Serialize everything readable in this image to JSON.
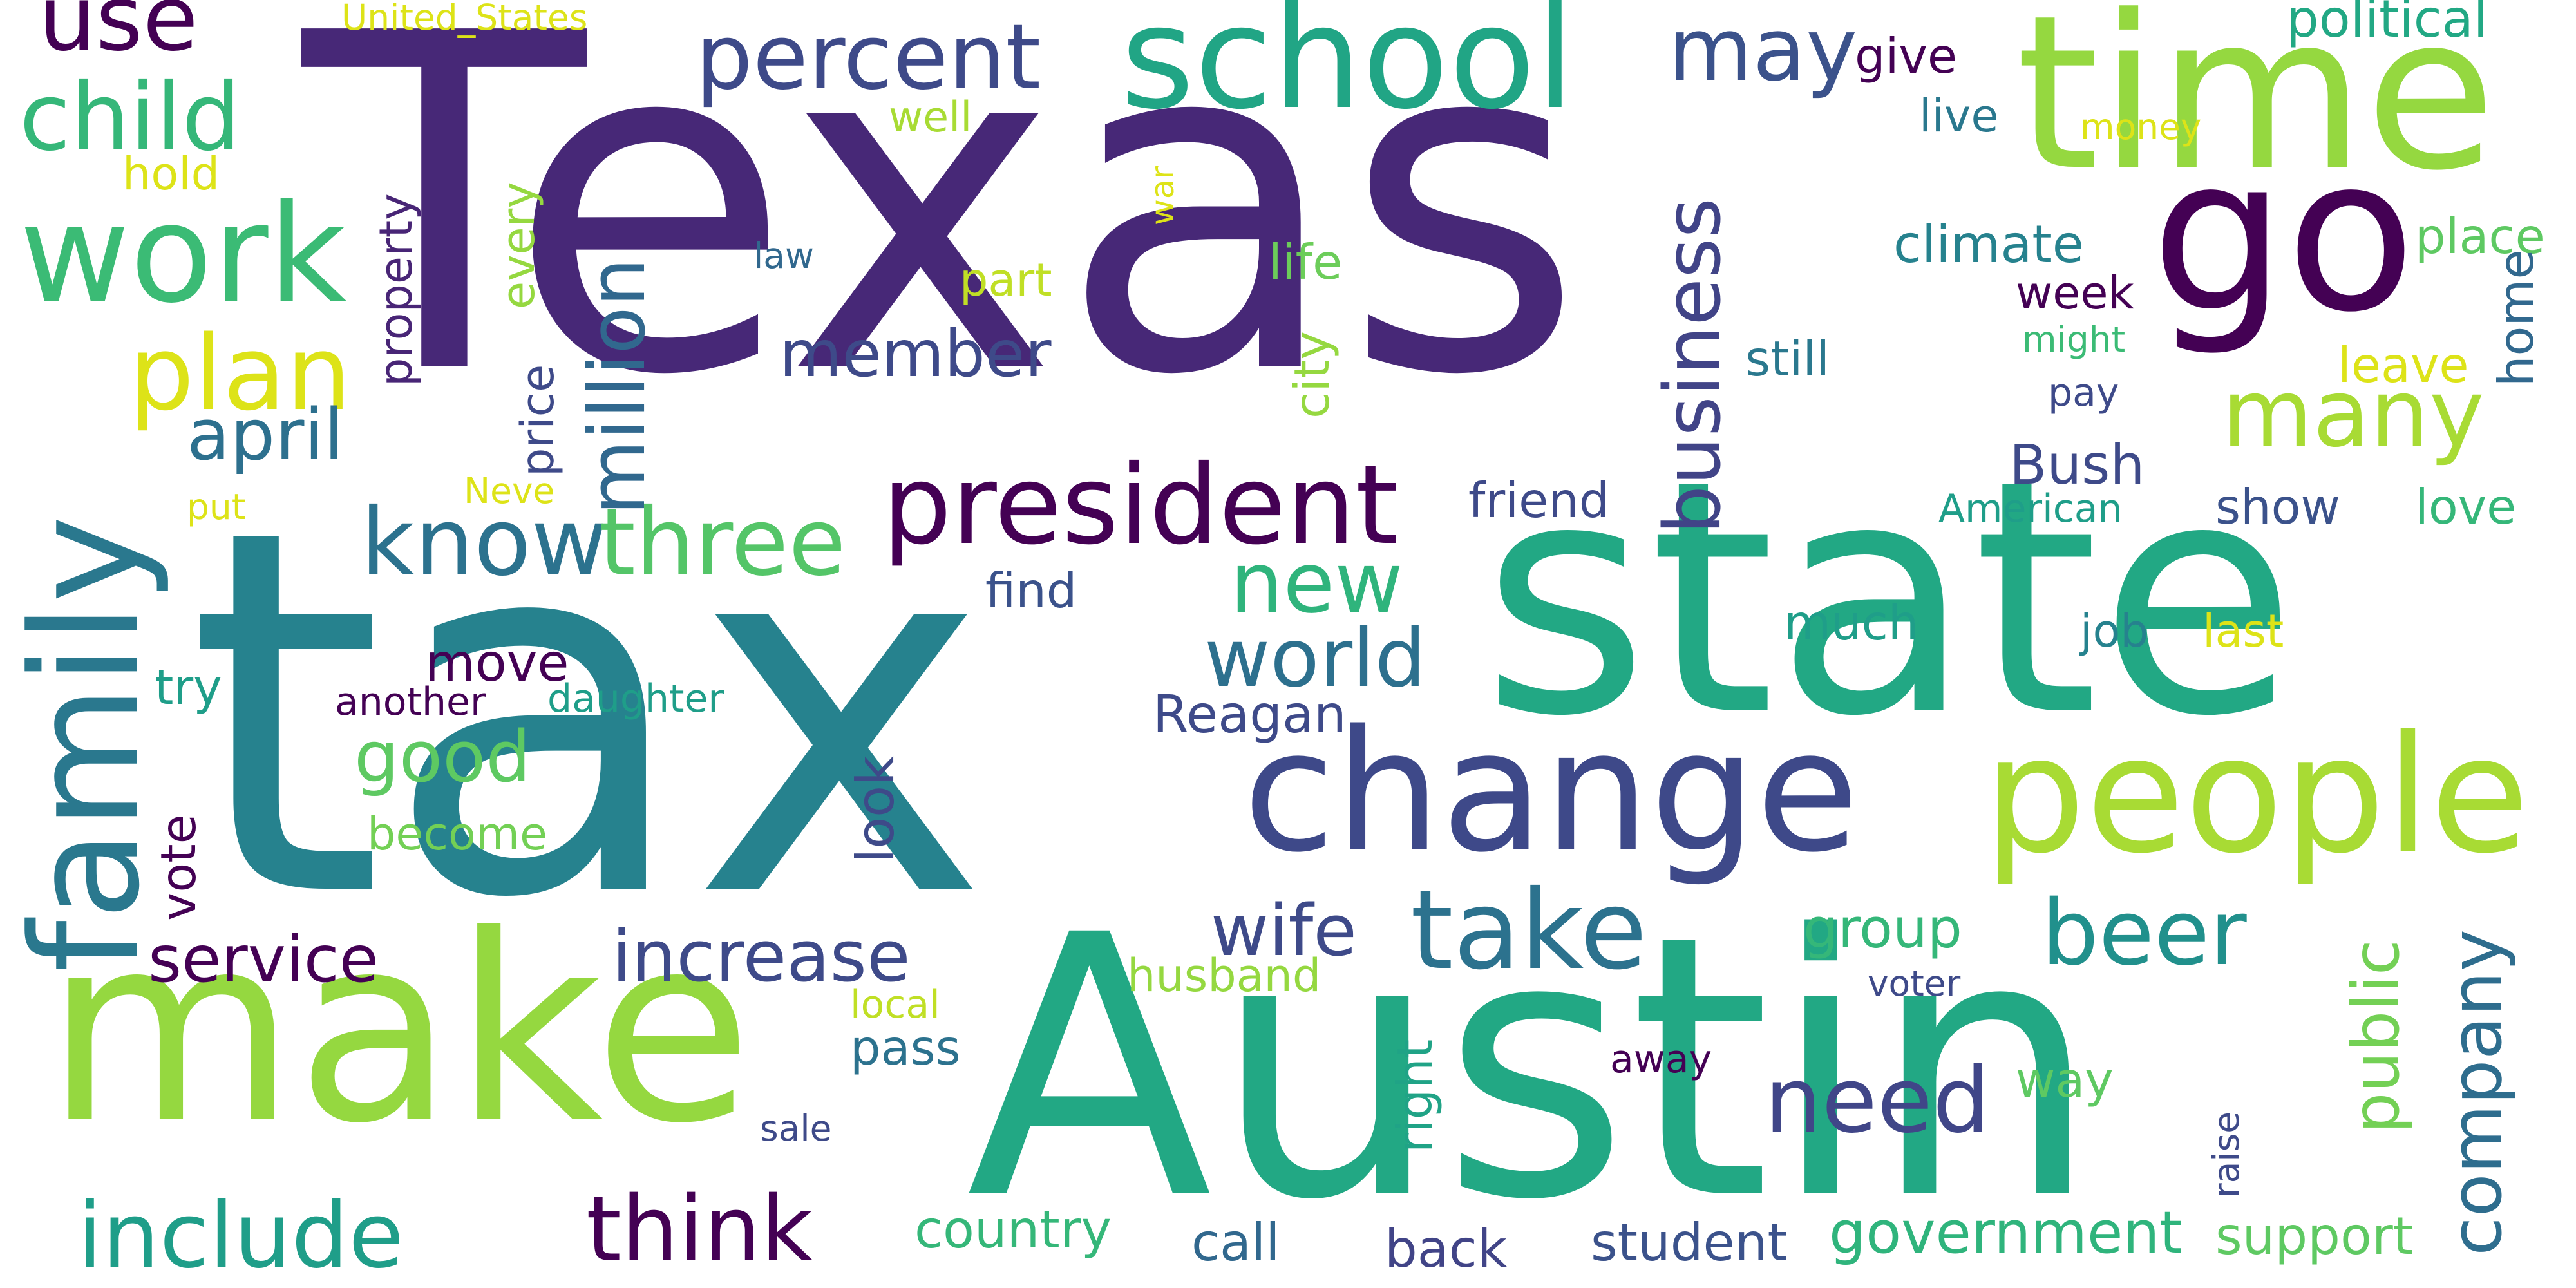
{
  "words": [
    {
      "text": "Texas",
      "color": "#472877"
    },
    {
      "text": "tax",
      "color": "#26828E"
    },
    {
      "text": "state",
      "color": "#22A884"
    },
    {
      "text": "Austin",
      "color": "#22A884"
    },
    {
      "text": "make",
      "color": "#95D840"
    },
    {
      "text": "time",
      "color": "#95D840"
    },
    {
      "text": "go",
      "color": "#440154"
    },
    {
      "text": "change",
      "color": "#3E4989"
    },
    {
      "text": "people",
      "color": "#A8DB34"
    },
    {
      "text": "school",
      "color": "#21A585"
    },
    {
      "text": "family",
      "color": "#2A788E"
    },
    {
      "text": "work",
      "color": "#3BBB75"
    },
    {
      "text": "president",
      "color": "#440154"
    },
    {
      "text": "percent",
      "color": "#3E4A89"
    },
    {
      "text": "plan",
      "color": "#DDE318"
    },
    {
      "text": "child",
      "color": "#35B779"
    },
    {
      "text": "use",
      "color": "#440154"
    },
    {
      "text": "know",
      "color": "#2C728E"
    },
    {
      "text": "three",
      "color": "#54C568"
    },
    {
      "text": "take",
      "color": "#2C728E"
    },
    {
      "text": "beer",
      "color": "#21908C"
    },
    {
      "text": "need",
      "color": "#404688"
    },
    {
      "text": "include",
      "color": "#1F9E89"
    },
    {
      "text": "think",
      "color": "#440154"
    },
    {
      "text": "company",
      "color": "#2E6D8E"
    },
    {
      "text": "million",
      "color": "#31688E"
    },
    {
      "text": "business",
      "color": "#414487"
    },
    {
      "text": "many",
      "color": "#A8DB34"
    },
    {
      "text": "may",
      "color": "#3B528B"
    },
    {
      "text": "world",
      "color": "#2D708E"
    },
    {
      "text": "new",
      "color": "#2FB47C"
    },
    {
      "text": "increase",
      "color": "#3E4A89"
    },
    {
      "text": "service",
      "color": "#440154"
    },
    {
      "text": "wife",
      "color": "#3E4A89"
    },
    {
      "text": "april",
      "color": "#2D708E"
    },
    {
      "text": "member",
      "color": "#3E4A89"
    },
    {
      "text": "good",
      "color": "#5EC962"
    },
    {
      "text": "public",
      "color": "#73D055"
    },
    {
      "text": "government",
      "color": "#2FB47C"
    },
    {
      "text": "political",
      "color": "#22A884"
    },
    {
      "text": "climate",
      "color": "#26828E"
    },
    {
      "text": "Bush",
      "color": "#3E4A89"
    },
    {
      "text": "Reagan",
      "color": "#3E4A89"
    },
    {
      "text": "move",
      "color": "#440154"
    },
    {
      "text": "look",
      "color": "#3E4A89"
    },
    {
      "text": "country",
      "color": "#35B779"
    },
    {
      "text": "student",
      "color": "#3B528B"
    },
    {
      "text": "support",
      "color": "#5EC962"
    },
    {
      "text": "back",
      "color": "#414487"
    },
    {
      "text": "call",
      "color": "#31688E"
    },
    {
      "text": "group",
      "color": "#35B779"
    },
    {
      "text": "husband",
      "color": "#95D840"
    },
    {
      "text": "right",
      "color": "#20A386"
    },
    {
      "text": "pass",
      "color": "#2C728E"
    },
    {
      "text": "way",
      "color": "#5EC962"
    },
    {
      "text": "vote",
      "color": "#440154"
    },
    {
      "text": "try",
      "color": "#1F9E89"
    },
    {
      "text": "another",
      "color": "#440154"
    },
    {
      "text": "daughter",
      "color": "#1F9E89"
    },
    {
      "text": "become",
      "color": "#73D055"
    },
    {
      "text": "friend",
      "color": "#3E4A89"
    },
    {
      "text": "find",
      "color": "#3B528B"
    },
    {
      "text": "much",
      "color": "#1F9E89"
    },
    {
      "text": "job",
      "color": "#26828E"
    },
    {
      "text": "last",
      "color": "#DDE318"
    },
    {
      "text": "show",
      "color": "#3B528B"
    },
    {
      "text": "love",
      "color": "#35B779"
    },
    {
      "text": "American",
      "color": "#1F9E89"
    },
    {
      "text": "home",
      "color": "#31688E"
    },
    {
      "text": "leave",
      "color": "#DDE318"
    },
    {
      "text": "place",
      "color": "#5EC962"
    },
    {
      "text": "pay",
      "color": "#3E4A89"
    },
    {
      "text": "week",
      "color": "#440154"
    },
    {
      "text": "might",
      "color": "#3BBB75"
    },
    {
      "text": "still",
      "color": "#2A788E"
    },
    {
      "text": "life",
      "color": "#6CCD5A"
    },
    {
      "text": "city",
      "color": "#95D840"
    },
    {
      "text": "part",
      "color": "#C0DF25"
    },
    {
      "text": "law",
      "color": "#31688E"
    },
    {
      "text": "war",
      "color": "#DDE318"
    },
    {
      "text": "well",
      "color": "#A8DB34"
    },
    {
      "text": "give",
      "color": "#440154"
    },
    {
      "text": "live",
      "color": "#2A788E"
    },
    {
      "text": "money",
      "color": "#DDE318"
    },
    {
      "text": "United_States",
      "color": "#DDE318"
    },
    {
      "text": "hold",
      "color": "#DDE318"
    },
    {
      "text": "property",
      "color": "#482576"
    },
    {
      "text": "every",
      "color": "#95D840"
    },
    {
      "text": "price",
      "color": "#3E4A89"
    },
    {
      "text": "put",
      "color": "#DDE318"
    },
    {
      "text": "Neve",
      "color": "#DDE318"
    },
    {
      "text": "voter",
      "color": "#3E4A89"
    },
    {
      "text": "away",
      "color": "#440154"
    },
    {
      "text": "raise",
      "color": "#3E4A89"
    },
    {
      "text": "local",
      "color": "#C0DF25"
    },
    {
      "text": "sale",
      "color": "#3E4A89"
    }
  ]
}
